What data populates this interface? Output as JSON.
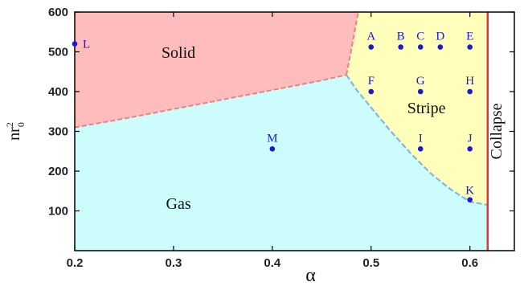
{
  "chart_data": {
    "type": "scatter",
    "title": "",
    "xlabel": "α",
    "ylabel_main": "nr",
    "ylabel_sub": "0",
    "ylabel_sup": "2",
    "xlim": [
      0.2,
      0.645
    ],
    "ylim": [
      0,
      600
    ],
    "xticks": [
      {
        "value": 0.2,
        "label": "0.2"
      },
      {
        "value": 0.3,
        "label": "0.3"
      },
      {
        "value": 0.4,
        "label": "0.4"
      },
      {
        "value": 0.5,
        "label": "0.5"
      },
      {
        "value": 0.6,
        "label": "0.6"
      }
    ],
    "yticks": [
      {
        "value": 100,
        "label": "100"
      },
      {
        "value": 200,
        "label": "200"
      },
      {
        "value": 300,
        "label": "300"
      },
      {
        "value": 400,
        "label": "400"
      },
      {
        "value": 500,
        "label": "500"
      },
      {
        "value": 600,
        "label": "600"
      }
    ],
    "regions": [
      {
        "label": "Solid",
        "color": "#ffbcbc",
        "label_at": [
          0.305,
          485
        ]
      },
      {
        "label": "Gas",
        "color": "#ccfcfc",
        "label_at": [
          0.305,
          105
        ]
      },
      {
        "label": "Stripe",
        "color": "#ffffbb",
        "label_at": [
          0.556,
          345
        ]
      },
      {
        "label": "Collapse",
        "color": "#ffffff",
        "label_at": [
          0.632,
          300
        ]
      }
    ],
    "boundaries": {
      "solid_gas": [
        [
          0.2,
          310
        ],
        [
          0.25,
          332
        ],
        [
          0.3,
          356
        ],
        [
          0.35,
          380
        ],
        [
          0.4,
          404
        ],
        [
          0.45,
          428
        ],
        [
          0.475,
          442
        ]
      ],
      "solid_stripe": [
        [
          0.475,
          442
        ],
        [
          0.478,
          480
        ],
        [
          0.481,
          520
        ],
        [
          0.484,
          560
        ],
        [
          0.487,
          600
        ]
      ],
      "gas_stripe": [
        [
          0.475,
          442
        ],
        [
          0.485,
          405
        ],
        [
          0.5,
          360
        ],
        [
          0.52,
          300
        ],
        [
          0.54,
          245
        ],
        [
          0.56,
          195
        ],
        [
          0.58,
          155
        ],
        [
          0.6,
          123
        ],
        [
          0.618,
          115
        ]
      ],
      "collapse_x": 0.618
    },
    "points": [
      {
        "label": "L",
        "x": 0.2,
        "y": 520
      },
      {
        "label": "A",
        "x": 0.5,
        "y": 512
      },
      {
        "label": "B",
        "x": 0.53,
        "y": 512
      },
      {
        "label": "C",
        "x": 0.55,
        "y": 512
      },
      {
        "label": "D",
        "x": 0.57,
        "y": 512
      },
      {
        "label": "E",
        "x": 0.6,
        "y": 512
      },
      {
        "label": "F",
        "x": 0.5,
        "y": 400
      },
      {
        "label": "G",
        "x": 0.55,
        "y": 400
      },
      {
        "label": "H",
        "x": 0.6,
        "y": 400
      },
      {
        "label": "M",
        "x": 0.4,
        "y": 256
      },
      {
        "label": "I",
        "x": 0.55,
        "y": 256
      },
      {
        "label": "J",
        "x": 0.6,
        "y": 256
      },
      {
        "label": "K",
        "x": 0.6,
        "y": 128
      }
    ],
    "colors": {
      "point": "#1a1ad6",
      "solid_boundary": "#f08080",
      "stripe_boundary": "#7cb8e8",
      "collapse_line": "#e83030"
    }
  }
}
